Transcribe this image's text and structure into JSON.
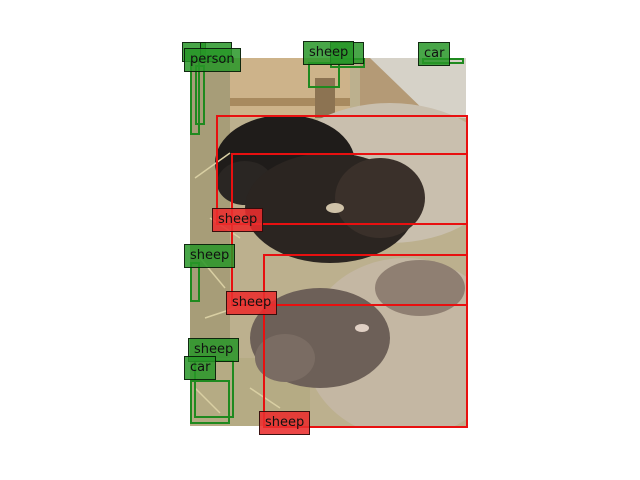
{
  "colors": {
    "detection_box": "#1f8a1f",
    "selected_box": "#e81010",
    "label_green": "#2c962c",
    "label_red": "#eb2d2d"
  },
  "labels": {
    "person_top": "person",
    "sheep_top": "sheep",
    "car_top": "car",
    "sheep_red_1": "sheep",
    "sheep_left_mid": "sheep",
    "sheep_red_2": "sheep",
    "sheep_left_low": "sheep",
    "car_left_low": "car",
    "sheep_red_3": "sheep"
  }
}
